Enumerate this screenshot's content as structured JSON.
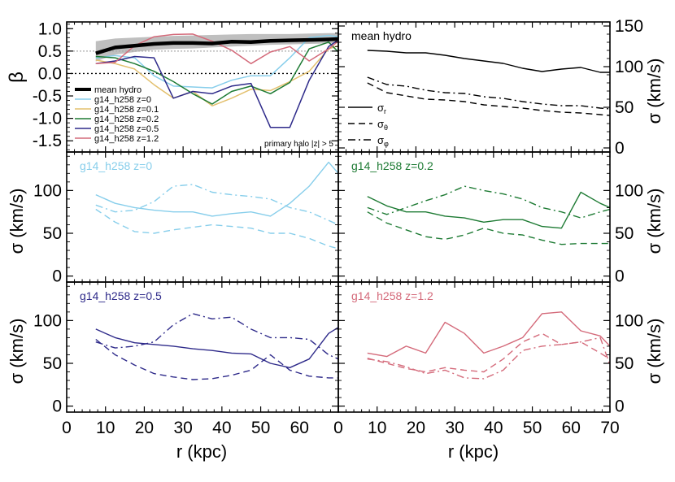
{
  "figure": {
    "x_axis_label": "r (kpc)",
    "y_axis_label_beta": "β",
    "y_axis_label_sigma": "σ  (km/s)",
    "beta_ticks": [
      "1.0",
      "0.5",
      "0.0",
      "-0.5",
      "-1.0",
      "-1.5"
    ],
    "sigma_ticks_top": [
      "150",
      "100",
      "50",
      "0"
    ],
    "sigma_ticks": [
      "100",
      "50",
      "0"
    ],
    "x_ticks": [
      "0",
      "10",
      "20",
      "30",
      "40",
      "50",
      "60",
      "70"
    ],
    "beta_legend": [
      {
        "label": "mean hydro",
        "color": "#000000"
      },
      {
        "label": "g14_h258 z=0",
        "color": "#87ceeb"
      },
      {
        "label": "g14_h258 z=0.1",
        "color": "#e3c06e"
      },
      {
        "label": "g14_h258 z=0.2",
        "color": "#1e7b34"
      },
      {
        "label": "g14_h258 z=0.5",
        "color": "#2e2a8a"
      },
      {
        "label": "g14_h258 z=1.2",
        "color": "#d46a7a"
      }
    ],
    "beta_note": "primary halo |z| > 5",
    "sigma_legend": [
      {
        "label": "σr",
        "main": "σ",
        "sub": "r",
        "dash": ""
      },
      {
        "label": "σθ",
        "main": "σ",
        "sub": "θ",
        "dash": "8,5"
      },
      {
        "label": "σφ",
        "main": "σ",
        "sub": "φ",
        "dash": "9,4,2,4"
      }
    ]
  },
  "chart_data": [
    {
      "type": "line",
      "panel": "beta",
      "ylabel": "β",
      "xlim": [
        0,
        70
      ],
      "ylim": [
        -1.75,
        1.15
      ],
      "reference_lines": [
        0.0,
        0.5
      ],
      "band": {
        "name": "mean hydro scatter",
        "color": "#bfbfbf",
        "x": [
          7.5,
          12.5,
          17.5,
          22.5,
          27.5,
          32.5,
          37.5,
          42.5,
          47.5,
          52.5,
          57.5,
          62.5,
          67.5,
          70
        ],
        "lower": [
          0.27,
          0.42,
          0.48,
          0.53,
          0.55,
          0.56,
          0.58,
          0.6,
          0.62,
          0.64,
          0.65,
          0.66,
          0.67,
          0.68
        ],
        "upper": [
          0.72,
          0.78,
          0.8,
          0.82,
          0.84,
          0.85,
          0.86,
          0.87,
          0.88,
          0.88,
          0.88,
          0.89,
          0.9,
          0.9
        ]
      },
      "series": [
        {
          "name": "mean hydro",
          "color": "#000000",
          "width": 4.5,
          "x": [
            7.5,
            12.5,
            17.5,
            22.5,
            27.5,
            32.5,
            37.5,
            42.5,
            47.5,
            52.5,
            57.5,
            62.5,
            67.5,
            70
          ],
          "y": [
            0.45,
            0.58,
            0.62,
            0.66,
            0.68,
            0.68,
            0.67,
            0.71,
            0.7,
            0.73,
            0.74,
            0.75,
            0.76,
            0.77
          ]
        },
        {
          "name": "g14_h258 z=0",
          "color": "#87ceeb",
          "width": 1.5,
          "x": [
            7.5,
            12.5,
            17.5,
            22.5,
            27.5,
            32.5,
            37.5,
            42.5,
            47.5,
            52.5,
            57.5,
            62.5,
            67.5,
            70
          ],
          "y": [
            0.35,
            0.4,
            0.35,
            -0.05,
            -0.28,
            -0.3,
            -0.32,
            -0.15,
            -0.05,
            -0.05,
            0.35,
            0.8,
            0.85,
            0.82
          ]
        },
        {
          "name": "g14_h258 z=0.1",
          "color": "#e3c06e",
          "width": 1.5,
          "x": [
            7.5,
            12.5,
            17.5,
            22.5,
            27.5,
            32.5,
            37.5,
            42.5,
            47.5,
            52.5,
            57.5,
            62.5,
            67.5,
            70
          ],
          "y": [
            0.3,
            0.22,
            0.1,
            -0.25,
            -0.55,
            -0.4,
            -0.72,
            -0.55,
            -0.35,
            -0.38,
            -0.18,
            0.05,
            0.55,
            0.62
          ]
        },
        {
          "name": "g14_h258 z=0.2",
          "color": "#1e7b34",
          "width": 1.5,
          "x": [
            7.5,
            12.5,
            17.5,
            22.5,
            27.5,
            32.5,
            37.5,
            42.5,
            47.5,
            52.5,
            57.5,
            62.5,
            67.5,
            70
          ],
          "y": [
            0.38,
            0.35,
            0.22,
            0.05,
            -0.18,
            -0.45,
            -0.68,
            -0.4,
            -0.28,
            -0.45,
            -0.2,
            0.55,
            0.7,
            0.48
          ]
        },
        {
          "name": "g14_h258 z=0.5",
          "color": "#2e2a8a",
          "width": 1.5,
          "x": [
            7.5,
            12.5,
            17.5,
            22.5,
            27.5,
            32.5,
            37.5,
            42.5,
            47.5,
            52.5,
            57.5,
            62.5,
            67.5,
            70
          ],
          "y": [
            0.22,
            0.28,
            0.38,
            0.35,
            -0.55,
            -0.4,
            -0.45,
            -0.28,
            -0.22,
            -1.2,
            -1.2,
            -0.15,
            0.6,
            0.75
          ]
        },
        {
          "name": "g14_h258 z=1.2",
          "color": "#d46a7a",
          "width": 1.5,
          "x": [
            7.5,
            12.5,
            17.5,
            22.5,
            27.5,
            32.5,
            37.5,
            42.5,
            47.5,
            52.5,
            57.5,
            62.5,
            67.5,
            70
          ],
          "y": [
            0.22,
            0.25,
            0.62,
            0.82,
            0.87,
            0.88,
            0.72,
            0.52,
            0.22,
            0.48,
            0.6,
            0.28,
            0.55,
            0.72
          ]
        }
      ]
    },
    {
      "type": "line",
      "panel": "mean-hydro-sigma",
      "label": "mean hydro",
      "label_color": "#000000",
      "ylabel": "σ  (km/s)",
      "xlim": [
        0,
        70
      ],
      "ylim": [
        -5,
        155
      ],
      "series": [
        {
          "name": "σr",
          "color": "#000000",
          "dash": "",
          "x": [
            7.5,
            12.5,
            17.5,
            22.5,
            27.5,
            32.5,
            37.5,
            42.5,
            47.5,
            52.5,
            57.5,
            62.5,
            67.5,
            70
          ],
          "y": [
            120,
            119,
            117,
            117,
            114,
            110,
            107,
            104,
            98,
            94,
            97,
            99,
            93,
            93
          ]
        },
        {
          "name": "σθ",
          "color": "#000000",
          "dash": "8,5",
          "x": [
            7.5,
            12.5,
            17.5,
            22.5,
            27.5,
            32.5,
            37.5,
            42.5,
            47.5,
            52.5,
            57.5,
            62.5,
            67.5,
            70
          ],
          "y": [
            80,
            68,
            64,
            60,
            59,
            57,
            53,
            51,
            49,
            46,
            44,
            43,
            41,
            40
          ]
        },
        {
          "name": "σφ",
          "color": "#000000",
          "dash": "9,4,2,4",
          "x": [
            7.5,
            12.5,
            17.5,
            22.5,
            27.5,
            32.5,
            37.5,
            42.5,
            47.5,
            52.5,
            57.5,
            62.5,
            67.5,
            70
          ],
          "y": [
            87,
            78,
            76,
            71,
            68,
            67,
            63,
            61,
            57,
            54,
            52,
            52,
            49,
            48
          ]
        }
      ]
    },
    {
      "type": "line",
      "panel": "z0",
      "label": "g14_h258 z=0",
      "label_color": "#87ceeb",
      "ylabel": "σ  (km/s)",
      "xlim": [
        0,
        70
      ],
      "ylim": [
        -7,
        145
      ],
      "series": [
        {
          "name": "σr",
          "color": "#87ceeb",
          "dash": "",
          "x": [
            7.5,
            12.5,
            17.5,
            22.5,
            27.5,
            32.5,
            37.5,
            42.5,
            47.5,
            52.5,
            57.5,
            62.5,
            67.5,
            70
          ],
          "y": [
            95,
            85,
            80,
            77,
            75,
            75,
            70,
            73,
            75,
            70,
            85,
            105,
            133,
            120
          ]
        },
        {
          "name": "σθ",
          "color": "#87ceeb",
          "dash": "8,5",
          "x": [
            7.5,
            12.5,
            17.5,
            22.5,
            27.5,
            32.5,
            37.5,
            42.5,
            47.5,
            52.5,
            57.5,
            62.5,
            67.5,
            70
          ],
          "y": [
            78,
            63,
            52,
            50,
            54,
            57,
            60,
            58,
            56,
            50,
            50,
            44,
            35,
            32
          ]
        },
        {
          "name": "σφ",
          "color": "#87ceeb",
          "dash": "9,4,2,4",
          "x": [
            7.5,
            12.5,
            17.5,
            22.5,
            27.5,
            32.5,
            37.5,
            42.5,
            47.5,
            52.5,
            57.5,
            62.5,
            67.5,
            70
          ],
          "y": [
            83,
            75,
            77,
            87,
            105,
            107,
            98,
            95,
            93,
            90,
            80,
            75,
            65,
            60
          ]
        }
      ]
    },
    {
      "type": "line",
      "panel": "z0.2",
      "label": "g14_h258 z=0.2",
      "label_color": "#1e7b34",
      "ylabel": "σ  (km/s)",
      "xlim": [
        0,
        70
      ],
      "ylim": [
        -7,
        145
      ],
      "series": [
        {
          "name": "σr",
          "color": "#1e7b34",
          "dash": "",
          "x": [
            7.5,
            12.5,
            17.5,
            22.5,
            27.5,
            32.5,
            37.5,
            42.5,
            47.5,
            52.5,
            57.5,
            62.5,
            67.5,
            70
          ],
          "y": [
            93,
            82,
            75,
            75,
            70,
            68,
            63,
            66,
            66,
            58,
            56,
            98,
            85,
            80
          ]
        },
        {
          "name": "σθ",
          "color": "#1e7b34",
          "dash": "8,5",
          "x": [
            7.5,
            12.5,
            17.5,
            22.5,
            27.5,
            32.5,
            37.5,
            42.5,
            47.5,
            52.5,
            57.5,
            62.5,
            67.5,
            70
          ],
          "y": [
            75,
            62,
            54,
            46,
            43,
            48,
            56,
            50,
            48,
            42,
            37,
            38,
            38,
            38
          ]
        },
        {
          "name": "σφ",
          "color": "#1e7b34",
          "dash": "9,4,2,4",
          "x": [
            7.5,
            12.5,
            17.5,
            22.5,
            27.5,
            32.5,
            37.5,
            42.5,
            47.5,
            52.5,
            57.5,
            62.5,
            67.5,
            70
          ],
          "y": [
            80,
            72,
            80,
            88,
            95,
            105,
            100,
            96,
            90,
            80,
            75,
            68,
            75,
            78
          ]
        }
      ]
    },
    {
      "type": "line",
      "panel": "z0.5",
      "label": "g14_h258 z=0.5",
      "label_color": "#2e2a8a",
      "ylabel": "σ  (km/s)",
      "xlim": [
        0,
        70
      ],
      "ylim": [
        -7,
        145
      ],
      "series": [
        {
          "name": "σr",
          "color": "#2e2a8a",
          "dash": "",
          "x": [
            7.5,
            12.5,
            17.5,
            22.5,
            27.5,
            32.5,
            37.5,
            42.5,
            47.5,
            52.5,
            57.5,
            62.5,
            67.5,
            70
          ],
          "y": [
            90,
            80,
            74,
            72,
            70,
            67,
            65,
            62,
            61,
            50,
            45,
            55,
            85,
            92
          ]
        },
        {
          "name": "σθ",
          "color": "#2e2a8a",
          "dash": "8,5",
          "x": [
            7.5,
            12.5,
            17.5,
            22.5,
            27.5,
            32.5,
            37.5,
            42.5,
            47.5,
            52.5,
            57.5,
            62.5,
            67.5,
            70
          ],
          "y": [
            78,
            60,
            48,
            38,
            34,
            31,
            32,
            36,
            42,
            60,
            42,
            35,
            33,
            33
          ]
        },
        {
          "name": "σφ",
          "color": "#2e2a8a",
          "dash": "9,4,2,4",
          "x": [
            7.5,
            12.5,
            17.5,
            22.5,
            27.5,
            32.5,
            37.5,
            42.5,
            47.5,
            52.5,
            57.5,
            62.5,
            67.5,
            70
          ],
          "y": [
            75,
            68,
            70,
            75,
            95,
            108,
            102,
            104,
            90,
            80,
            80,
            78,
            60,
            55
          ]
        }
      ]
    },
    {
      "type": "line",
      "panel": "z1.2",
      "label": "g14_h258 z=1.2",
      "label_color": "#d46a7a",
      "ylabel": "σ  (km/s)",
      "xlim": [
        0,
        70
      ],
      "ylim": [
        -7,
        145
      ],
      "series": [
        {
          "name": "σr",
          "color": "#d46a7a",
          "dash": "",
          "x": [
            7.5,
            12.5,
            17.5,
            22.5,
            27.5,
            32.5,
            37.5,
            42.5,
            47.5,
            52.5,
            57.5,
            62.5,
            67.5,
            70
          ],
          "y": [
            62,
            58,
            70,
            62,
            98,
            85,
            62,
            70,
            80,
            108,
            110,
            88,
            82,
            70
          ]
        },
        {
          "name": "σθ",
          "color": "#d46a7a",
          "dash": "8,5",
          "x": [
            7.5,
            12.5,
            17.5,
            22.5,
            27.5,
            32.5,
            37.5,
            42.5,
            47.5,
            52.5,
            57.5,
            62.5,
            67.5,
            70
          ],
          "y": [
            56,
            50,
            44,
            40,
            45,
            42,
            40,
            55,
            75,
            85,
            72,
            75,
            62,
            55
          ]
        },
        {
          "name": "σφ",
          "color": "#d46a7a",
          "dash": "9,4,2,4",
          "x": [
            7.5,
            12.5,
            17.5,
            22.5,
            27.5,
            32.5,
            37.5,
            42.5,
            47.5,
            52.5,
            57.5,
            62.5,
            67.5,
            70
          ],
          "y": [
            55,
            52,
            46,
            38,
            42,
            33,
            32,
            42,
            65,
            70,
            72,
            75,
            80,
            48
          ]
        }
      ]
    }
  ]
}
